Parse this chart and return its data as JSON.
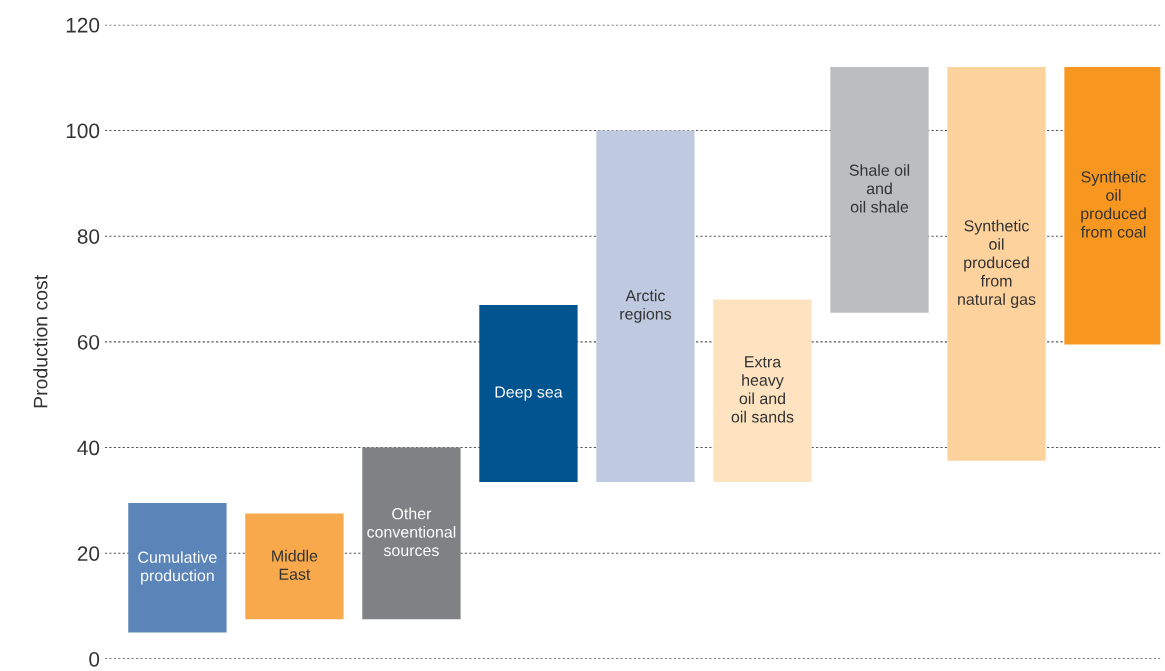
{
  "chart_data": {
    "type": "bar",
    "ylabel": "Production cost",
    "categories": [
      "Cumulative\nproduction",
      "Middle\nEast",
      "Other\nconventional\nsources",
      "Deep sea",
      "Arctic\nregions",
      "Extra\nheavy\noil and\noil sands",
      "Shale oil\nand\noil shale",
      "Synthetic\noil\nproduced\nfrom\nnatural gas",
      "Synthetic\noil\nproduced\nfrom coal"
    ],
    "base": [
      5,
      7.5,
      7.5,
      33.5,
      33.5,
      33.5,
      65.5,
      37.5,
      59.5
    ],
    "values": [
      24.5,
      20,
      32.5,
      33.5,
      66.5,
      34.5,
      46.5,
      74.5,
      52.5
    ],
    "colors": [
      "#5b85b9",
      "#f7a94b",
      "#808184",
      "#00548f",
      "#bfcae0",
      "#fde3c0",
      "#bcbdbf",
      "#fdd29d",
      "#f7971f"
    ],
    "ylim": [
      0,
      120
    ],
    "yticks": [
      0,
      20,
      40,
      60,
      80,
      100,
      120
    ],
    "grid": "y",
    "tick_labels": "y"
  }
}
